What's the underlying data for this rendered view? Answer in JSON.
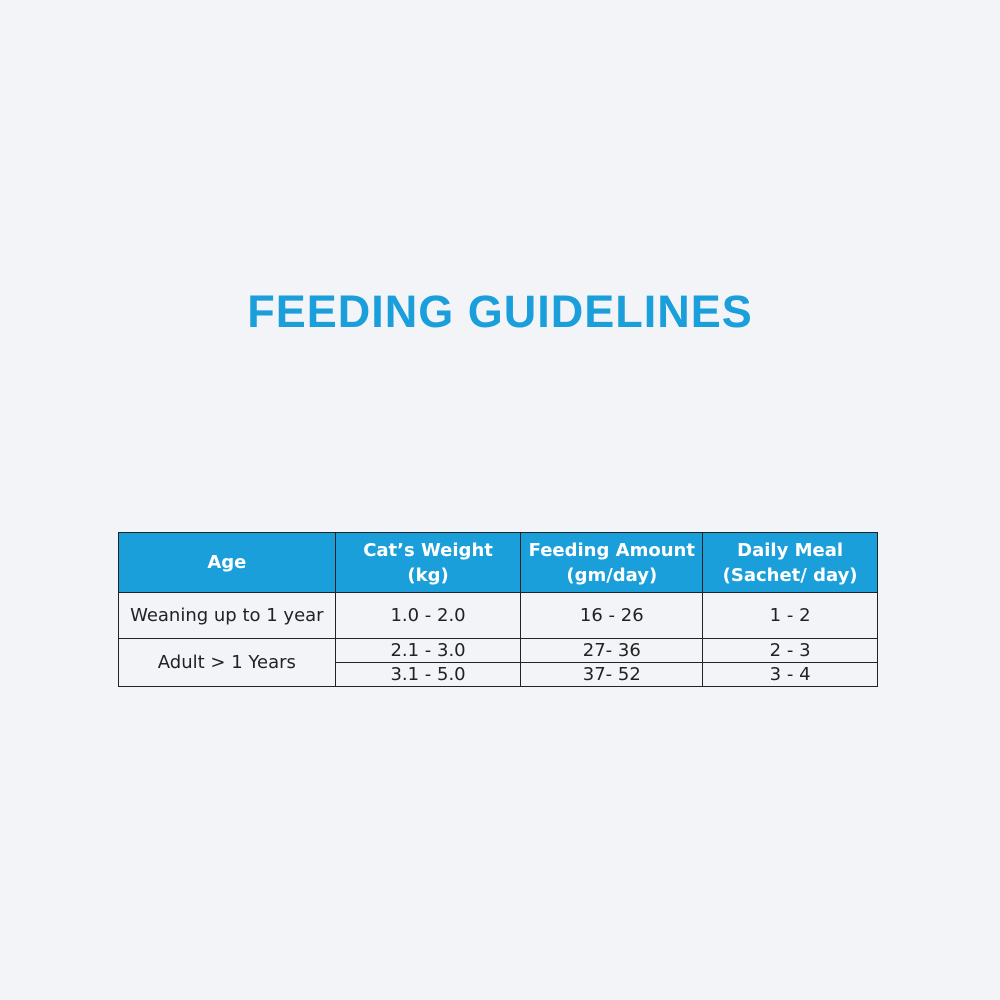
{
  "header": {
    "title": "FEEDING GUIDELINES"
  },
  "table": {
    "headers": [
      "Age",
      "Cat’s Weight (kg)",
      "Feeding Amount (gm/day)",
      "Daily Meal (Sachet/ day)"
    ],
    "rows": [
      {
        "age": "Weaning up to 1 year",
        "lines": [
          [
            "1.0 - 2.0",
            "16 - 26",
            "1 - 2"
          ]
        ]
      },
      {
        "age": "Adult > 1 Years",
        "lines": [
          [
            "2.1 - 3.0",
            "27- 36",
            "2 - 3"
          ],
          [
            "3.1 - 5.0",
            "37- 52",
            "3 - 4"
          ]
        ]
      }
    ]
  }
}
